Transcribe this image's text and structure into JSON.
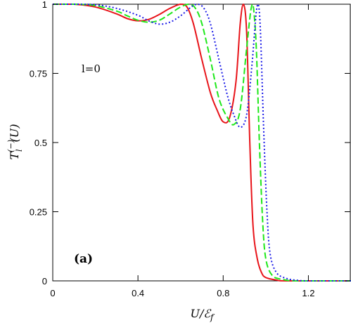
{
  "chart_data": {
    "type": "line",
    "xlabel": "U/ℰ_f",
    "ylabel": "T_l^(−)(U)",
    "xlim": [
      0,
      1.4
    ],
    "ylim": [
      0,
      1
    ],
    "xticks": [
      0,
      0.4,
      0.8,
      1.2
    ],
    "xtick_labels": [
      "0",
      "0.4",
      "0.8",
      "1.2"
    ],
    "yticks": [
      0,
      0.25,
      0.5,
      0.75,
      1
    ],
    "ytick_labels": [
      "0",
      "0.25",
      "0.5",
      "0.75",
      "1"
    ],
    "grid": false,
    "legend": "none",
    "annotations": {
      "l_label": "l=0",
      "panel_label": "(a)"
    },
    "series": [
      {
        "color": "#e8141a",
        "style": "solid",
        "points": [
          [
            0,
            1
          ],
          [
            0.1,
            1
          ],
          [
            0.2,
            0.99
          ],
          [
            0.3,
            0.965
          ],
          [
            0.35,
            0.948
          ],
          [
            0.4,
            0.94
          ],
          [
            0.45,
            0.945
          ],
          [
            0.5,
            0.963
          ],
          [
            0.55,
            0.985
          ],
          [
            0.6,
            1.0
          ],
          [
            0.63,
            0.99
          ],
          [
            0.66,
            0.93
          ],
          [
            0.7,
            0.8
          ],
          [
            0.74,
            0.68
          ],
          [
            0.77,
            0.62
          ],
          [
            0.8,
            0.575
          ],
          [
            0.83,
            0.59
          ],
          [
            0.86,
            0.72
          ],
          [
            0.88,
            0.93
          ],
          [
            0.895,
            1.0
          ],
          [
            0.91,
            0.9
          ],
          [
            0.925,
            0.5
          ],
          [
            0.94,
            0.2
          ],
          [
            0.96,
            0.08
          ],
          [
            0.98,
            0.03
          ],
          [
            1.0,
            0.012
          ],
          [
            1.05,
            0.003
          ],
          [
            1.1,
            0
          ],
          [
            1.4,
            0
          ]
        ]
      },
      {
        "color": "#1ee81a",
        "style": "dashed",
        "points": [
          [
            0,
            1
          ],
          [
            0.1,
            1
          ],
          [
            0.2,
            0.995
          ],
          [
            0.3,
            0.975
          ],
          [
            0.35,
            0.958
          ],
          [
            0.4,
            0.942
          ],
          [
            0.45,
            0.935
          ],
          [
            0.5,
            0.942
          ],
          [
            0.55,
            0.965
          ],
          [
            0.6,
            0.99
          ],
          [
            0.64,
            1.0
          ],
          [
            0.67,
            0.985
          ],
          [
            0.7,
            0.93
          ],
          [
            0.74,
            0.8
          ],
          [
            0.78,
            0.66
          ],
          [
            0.82,
            0.59
          ],
          [
            0.85,
            0.565
          ],
          [
            0.88,
            0.62
          ],
          [
            0.91,
            0.84
          ],
          [
            0.93,
            0.98
          ],
          [
            0.94,
            1.0
          ],
          [
            0.955,
            0.85
          ],
          [
            0.97,
            0.5
          ],
          [
            0.985,
            0.22
          ],
          [
            1.0,
            0.08
          ],
          [
            1.03,
            0.02
          ],
          [
            1.08,
            0.005
          ],
          [
            1.15,
            0
          ],
          [
            1.4,
            0
          ]
        ]
      },
      {
        "color": "#1a1ae8",
        "style": "dotted",
        "points": [
          [
            0,
            1
          ],
          [
            0.1,
            1
          ],
          [
            0.2,
            0.998
          ],
          [
            0.3,
            0.985
          ],
          [
            0.4,
            0.96
          ],
          [
            0.45,
            0.94
          ],
          [
            0.5,
            0.928
          ],
          [
            0.55,
            0.935
          ],
          [
            0.6,
            0.958
          ],
          [
            0.65,
            0.99
          ],
          [
            0.68,
            1.0
          ],
          [
            0.71,
            0.985
          ],
          [
            0.74,
            0.93
          ],
          [
            0.78,
            0.8
          ],
          [
            0.82,
            0.67
          ],
          [
            0.85,
            0.6
          ],
          [
            0.88,
            0.555
          ],
          [
            0.91,
            0.6
          ],
          [
            0.935,
            0.78
          ],
          [
            0.955,
            0.97
          ],
          [
            0.965,
            1.0
          ],
          [
            0.975,
            0.9
          ],
          [
            0.99,
            0.55
          ],
          [
            1.005,
            0.26
          ],
          [
            1.02,
            0.1
          ],
          [
            1.05,
            0.03
          ],
          [
            1.1,
            0.008
          ],
          [
            1.15,
            0.002
          ],
          [
            1.2,
            0
          ],
          [
            1.4,
            0
          ]
        ]
      }
    ]
  }
}
